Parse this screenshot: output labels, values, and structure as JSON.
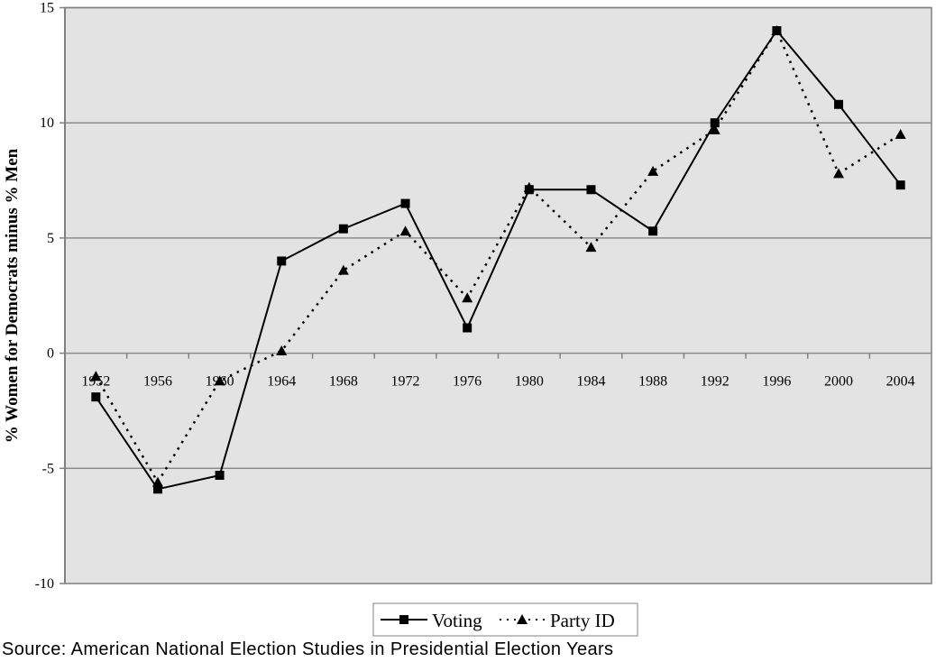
{
  "chart_data": {
    "type": "line",
    "title": "",
    "xlabel": "",
    "ylabel": "% Women for Democrats minus % Men",
    "ylim": [
      -10,
      15
    ],
    "yticks": [
      15,
      10,
      5,
      0,
      -5,
      -10
    ],
    "ytick_labels": [
      "15",
      "10",
      "5",
      "0",
      "-5",
      "-10"
    ],
    "grid": true,
    "legend_position": "bottom",
    "categories": [
      "1952",
      "1956",
      "1960",
      "1964",
      "1968",
      "1972",
      "1976",
      "1980",
      "1984",
      "1988",
      "1992",
      "1996",
      "2000",
      "2004"
    ],
    "series": [
      {
        "name": "Voting",
        "style": "solid",
        "marker": "square",
        "values": [
          -1.9,
          -5.9,
          -5.3,
          4.0,
          5.4,
          6.5,
          1.1,
          7.1,
          7.1,
          5.3,
          10.0,
          14.0,
          10.8,
          7.3
        ]
      },
      {
        "name": "Party ID",
        "style": "dotted",
        "marker": "triangle",
        "values": [
          -1.0,
          -5.6,
          -1.2,
          0.1,
          3.6,
          5.3,
          2.4,
          7.2,
          4.6,
          7.9,
          9.7,
          14.0,
          7.8,
          9.5
        ]
      }
    ],
    "source_note": "Source: American National Election Studies in Presidential Election Years",
    "colors": {
      "plot_background": "#e3e3e3",
      "gridline": "#8c8c8c",
      "axis": "#808080",
      "series": "#000000"
    }
  },
  "legend": {
    "items": [
      {
        "label": "Voting"
      },
      {
        "label": "Party ID"
      }
    ]
  },
  "footer": {
    "source": "Source: American National Election Studies in Presidential Election Years"
  }
}
